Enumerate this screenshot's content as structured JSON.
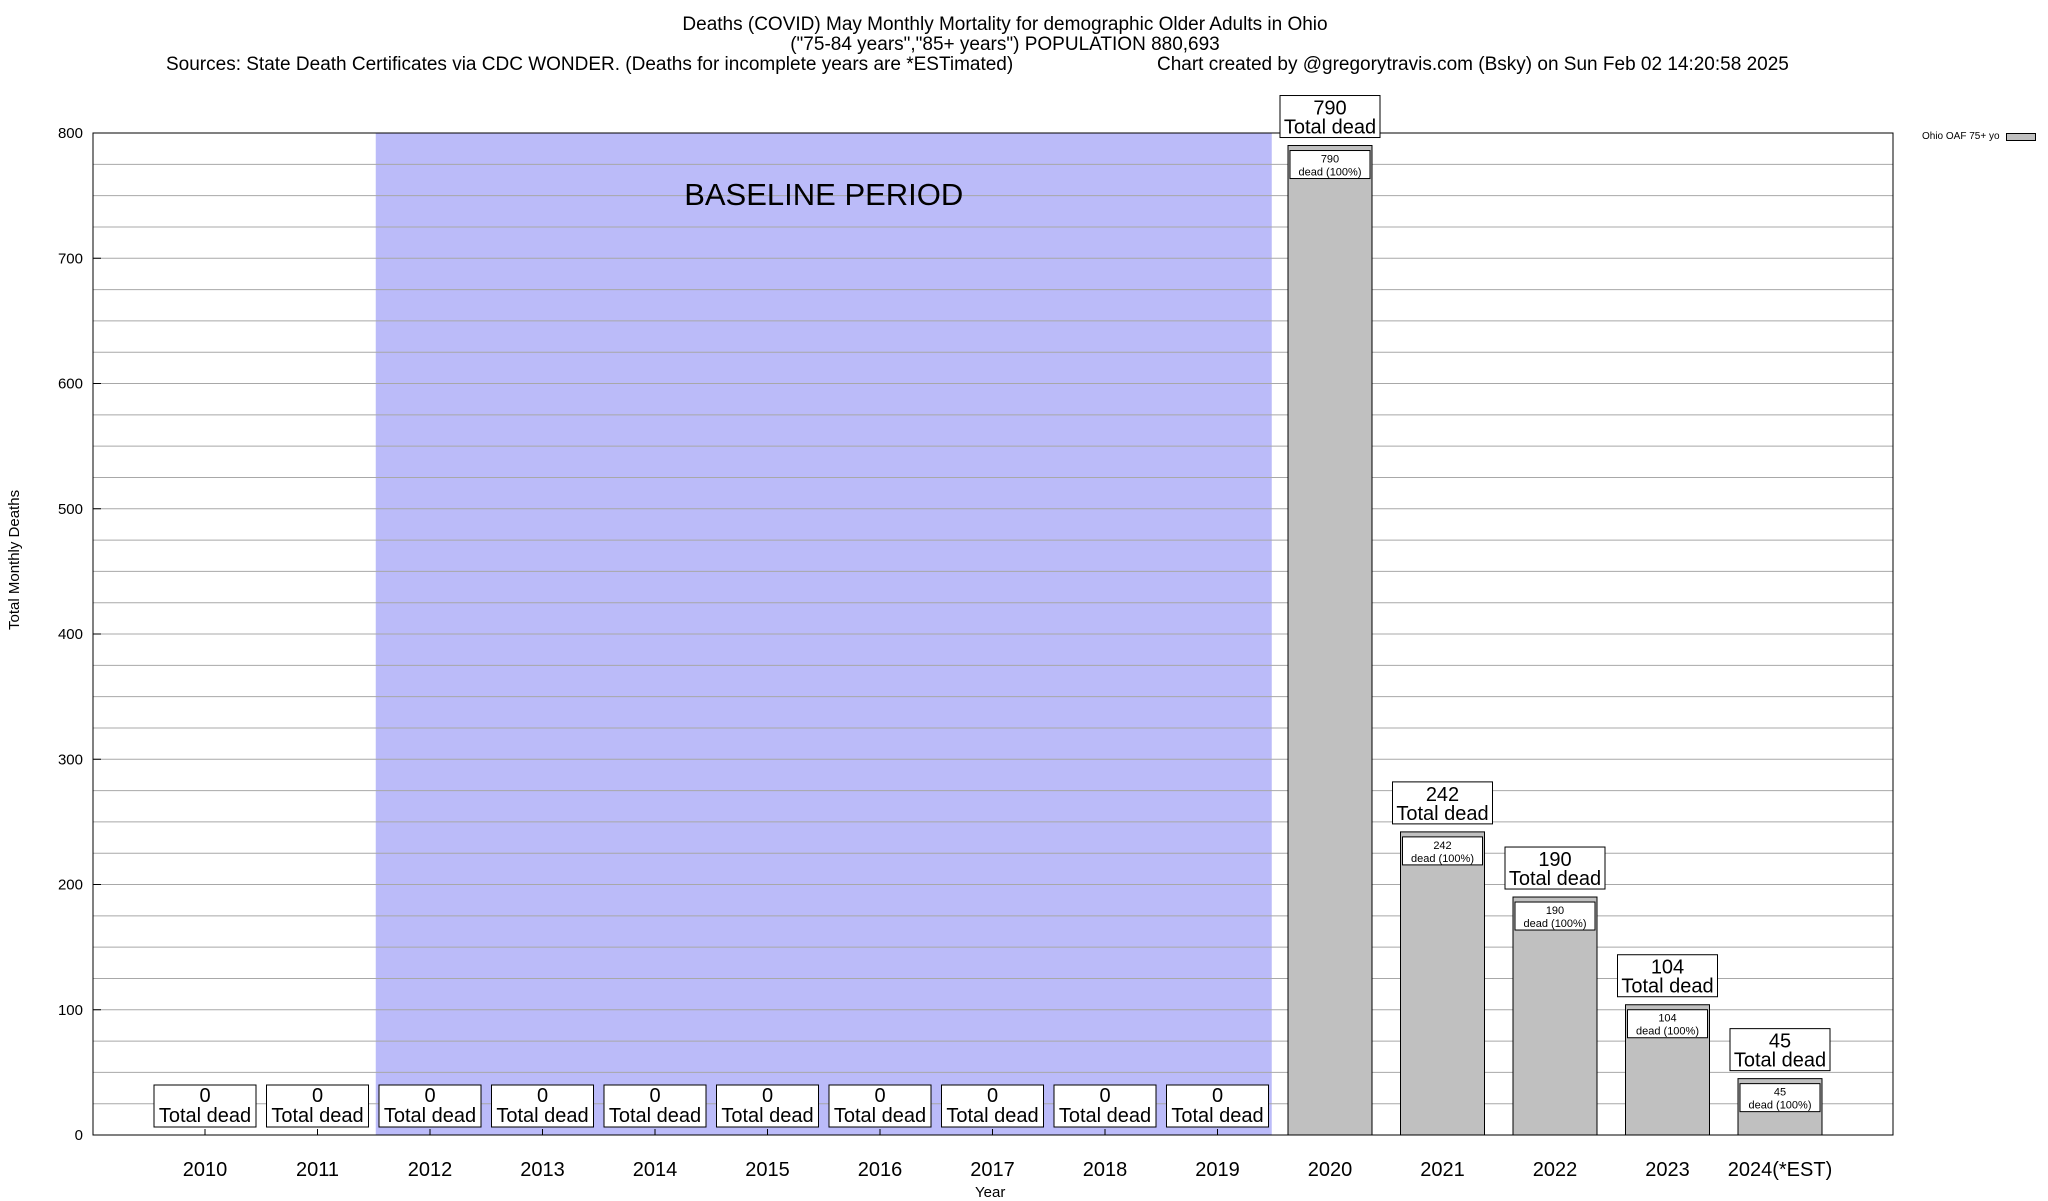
{
  "title": {
    "line1": "Deaths (COVID) May Monthly Mortality for demographic Older Adults in Ohio",
    "line2": "(\"75-84 years\",\"85+ years\") POPULATION 880,693",
    "sources": "Sources: State Death Certificates via CDC WONDER. (Deaths for incomplete years are *ESTimated)",
    "credit": "Chart created by @gregorytravis.com (Bsky) on Sun Feb 02 14:20:58 2025"
  },
  "legend": {
    "label": "Ohio OAF 75+ yo",
    "color": "#c0c0c0"
  },
  "chart_data": {
    "type": "bar",
    "title": "Deaths (COVID) May Monthly Mortality for demographic Older Adults in Ohio",
    "xlabel": "Year",
    "ylabel": "Total Monthly Deaths",
    "ylim": [
      0,
      800
    ],
    "yticks": [
      0,
      100,
      200,
      300,
      400,
      500,
      600,
      700,
      800
    ],
    "grid": true,
    "legend_position": "top-right",
    "categories": [
      "2010",
      "2011",
      "2012",
      "2013",
      "2014",
      "2015",
      "2016",
      "2017",
      "2018",
      "2019",
      "2020",
      "2021",
      "2022",
      "2023",
      "2024(*EST)"
    ],
    "series": [
      {
        "name": "Ohio OAF 75+ yo",
        "values": [
          0,
          0,
          0,
          0,
          0,
          0,
          0,
          0,
          0,
          0,
          790,
          242,
          190,
          104,
          45
        ],
        "color": "#c0c0c0"
      }
    ],
    "total_label": "Total dead",
    "inner_label": "dead (100%)",
    "baseline": {
      "label": "BASELINE PERIOD",
      "from": "2012",
      "to": "2019",
      "color": "#bbbbf9"
    }
  }
}
